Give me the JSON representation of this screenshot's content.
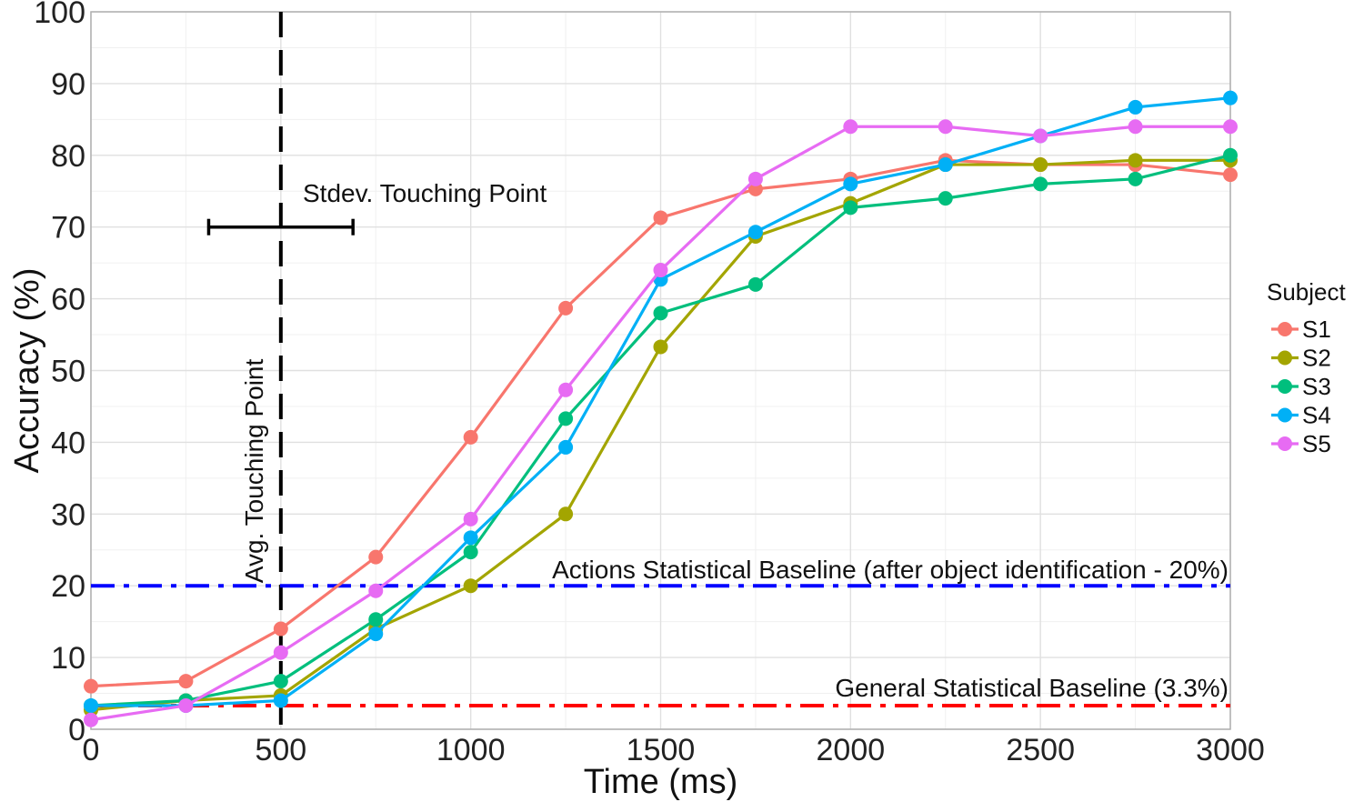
{
  "chart_data": {
    "type": "line",
    "xlabel": "Time (ms)",
    "ylabel": "Accuracy (%)",
    "xlim": [
      0,
      3000
    ],
    "ylim": [
      0,
      100
    ],
    "x_ticks": [
      0,
      500,
      1000,
      1500,
      2000,
      2500,
      3000
    ],
    "y_ticks": [
      0,
      10,
      20,
      30,
      40,
      50,
      60,
      70,
      80,
      90,
      100
    ],
    "grid": true,
    "legend": {
      "title": "Subject",
      "placement": "right"
    },
    "x": [
      0,
      250,
      500,
      750,
      1000,
      1250,
      1500,
      1750,
      2000,
      2250,
      2500,
      2750,
      3000
    ],
    "series": [
      {
        "name": "S1",
        "color": "#F8766D",
        "values": [
          6.0,
          6.7,
          14.0,
          24.0,
          40.7,
          58.7,
          71.3,
          75.3,
          76.7,
          79.3,
          78.7,
          78.7,
          77.3
        ]
      },
      {
        "name": "S2",
        "color": "#A3A500",
        "values": [
          2.7,
          4.0,
          4.7,
          14.0,
          20.0,
          30.0,
          53.3,
          68.7,
          73.3,
          78.7,
          78.7,
          79.3,
          79.3
        ]
      },
      {
        "name": "S3",
        "color": "#00BF7D",
        "values": [
          3.3,
          4.0,
          6.7,
          15.3,
          24.7,
          43.3,
          58.0,
          62.0,
          72.7,
          74.0,
          76.0,
          76.7,
          80.0
        ]
      },
      {
        "name": "S4",
        "color": "#00B0F6",
        "values": [
          3.3,
          3.3,
          4.0,
          13.3,
          26.7,
          39.3,
          62.7,
          69.3,
          76.0,
          78.7,
          82.7,
          86.7,
          88.0
        ]
      },
      {
        "name": "S5",
        "color": "#E76BF3",
        "values": [
          1.3,
          3.3,
          10.7,
          19.3,
          29.3,
          47.3,
          64.0,
          76.7,
          84.0,
          84.0,
          82.7,
          84.0,
          84.0
        ]
      }
    ],
    "reference_lines": [
      {
        "axis": "x",
        "value": 500,
        "color": "#000000",
        "style": "dashed",
        "label": "Avg. Touching Point"
      },
      {
        "axis": "y",
        "value": 20,
        "color": "#0000FF",
        "style": "dashdot",
        "label": "Actions Statistical Baseline (after object identification - 20%)"
      },
      {
        "axis": "y",
        "value": 3.3,
        "color": "#FF0000",
        "style": "dashdot",
        "label": "General Statistical Baseline (3.3%)"
      }
    ],
    "error_bar": {
      "y": 70,
      "x_min": 310,
      "x_max": 690,
      "label": "Stdev. Touching Point"
    }
  }
}
